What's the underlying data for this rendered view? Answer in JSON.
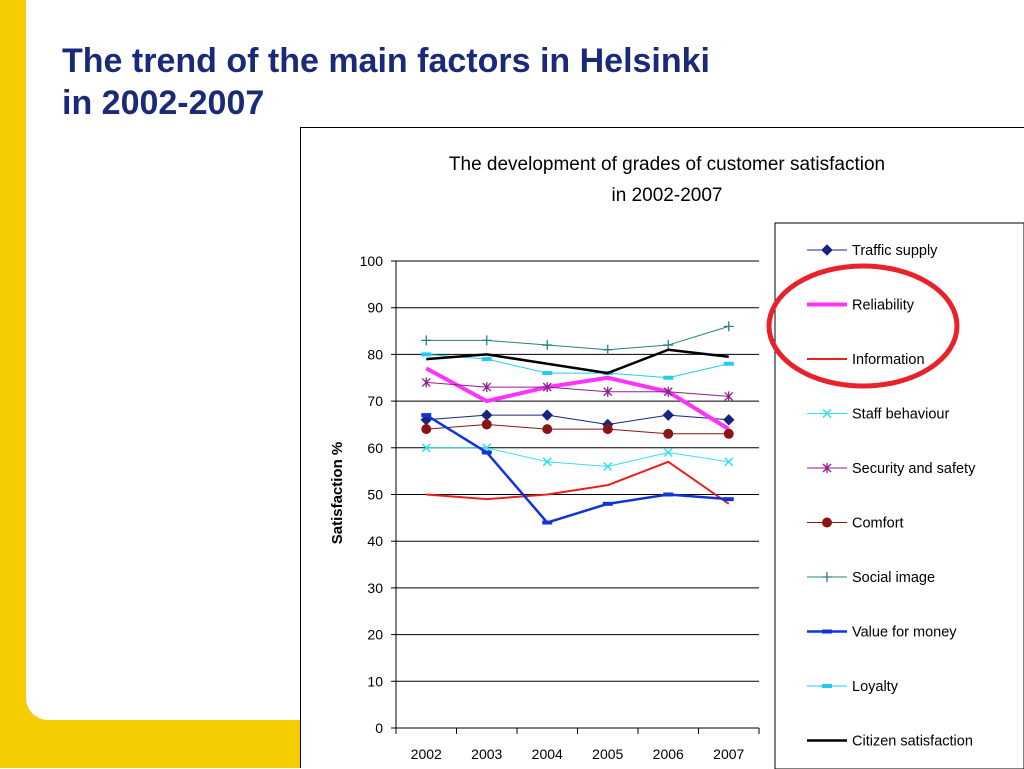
{
  "slide": {
    "title": "The trend of the main factors in Helsinki\nin 2002-2007"
  },
  "colors": {
    "title": "#1b2a78",
    "sidebar": "#f4cd00",
    "highlight_circle": "#e8212b"
  },
  "annotation": {
    "type": "circle",
    "target": "Reliability",
    "color": "#e8212b"
  },
  "chart_data": {
    "type": "line",
    "title": "The development of grades of customer satisfaction\nin 2002-2007",
    "xlabel": "",
    "ylabel": "Satisfaction %",
    "categories": [
      "2002",
      "2003",
      "2004",
      "2005",
      "2006",
      "2007"
    ],
    "ylim": [
      0,
      100
    ],
    "yticks": [
      0,
      10,
      20,
      30,
      40,
      50,
      60,
      70,
      80,
      90,
      100
    ],
    "grid": true,
    "legend_position": "right",
    "series": [
      {
        "name": "Traffic supply",
        "values": [
          66,
          67,
          67,
          65,
          67,
          66
        ],
        "color": "#1a237e",
        "marker": "diamond",
        "width": 1
      },
      {
        "name": "Reliability",
        "values": [
          77,
          70,
          73,
          75,
          72,
          64
        ],
        "color": "#ff33ff",
        "marker": "none",
        "width": 4
      },
      {
        "name": "Information",
        "values": [
          50,
          49,
          50,
          52,
          57,
          48
        ],
        "color": "#e8211b",
        "marker": "none",
        "width": 2
      },
      {
        "name": "Staff behaviour",
        "values": [
          60,
          60,
          57,
          56,
          59,
          57
        ],
        "color": "#33e0ee",
        "marker": "x",
        "width": 1
      },
      {
        "name": "Security and safety",
        "values": [
          74,
          73,
          73,
          72,
          72,
          71
        ],
        "color": "#8e1e8e",
        "marker": "asterisk",
        "width": 1
      },
      {
        "name": "Comfort",
        "values": [
          64,
          65,
          64,
          64,
          63,
          63
        ],
        "color": "#8b1414",
        "marker": "circle",
        "width": 1
      },
      {
        "name": "Social image",
        "values": [
          83,
          83,
          82,
          81,
          82,
          86
        ],
        "color": "#2a8080",
        "marker": "plus",
        "width": 1
      },
      {
        "name": "Value for money",
        "values": [
          67,
          59,
          44,
          48,
          50,
          49
        ],
        "color": "#1233d8",
        "marker": "dash",
        "width": 2.5
      },
      {
        "name": "Loyalty",
        "values": [
          80,
          79,
          76,
          76,
          75,
          78
        ],
        "color": "#22ccee",
        "marker": "dash",
        "width": 1
      },
      {
        "name": "Citizen satisfaction",
        "values": [
          79,
          80,
          78,
          76,
          81,
          79.5
        ],
        "color": "#000000",
        "marker": "none",
        "width": 2.5
      }
    ]
  }
}
